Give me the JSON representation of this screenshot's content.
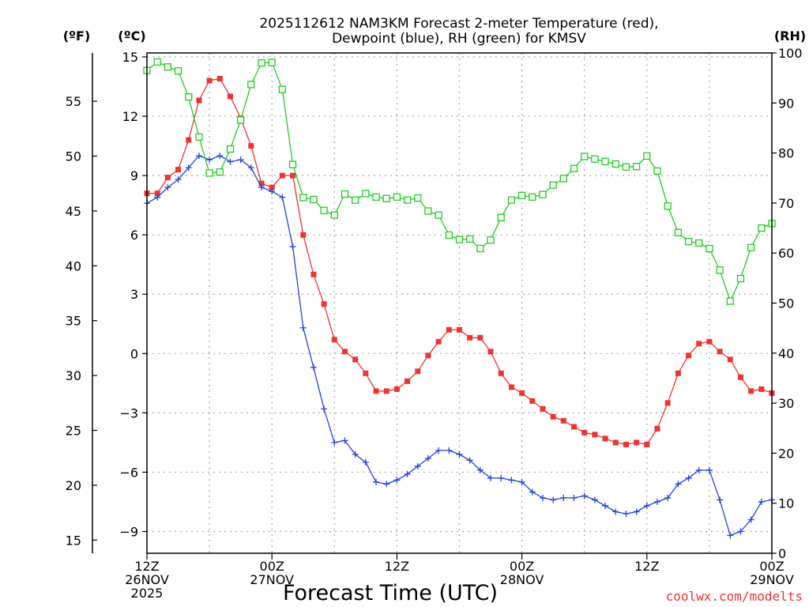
{
  "chart_data": {
    "type": "line",
    "title_line1": "2025112612 NAM3KM Forecast 2-meter Temperature (red),",
    "title_line2": "Dewpoint (blue), RH (green) for KMSV",
    "unit_f": "(ºF)",
    "unit_c": "(ºC)",
    "unit_rh": "(RH)",
    "xlabel": "Forecast Time (UTC)",
    "credit": "coolwx.com/modelts",
    "x_range_hours": [
      0,
      60
    ],
    "ylim_c": [
      -10.1,
      15.2
    ],
    "ylim_rh": [
      0,
      100
    ],
    "ylim_f": [
      13.8,
      59.4
    ],
    "c_ticks": [
      "15",
      "12",
      "9",
      "6",
      "3",
      "0",
      "−3",
      "−6",
      "−9"
    ],
    "c_tick_values": [
      15,
      12,
      9,
      6,
      3,
      0,
      -3,
      -6,
      -9
    ],
    "f_ticks": [
      "55",
      "50",
      "45",
      "40",
      "35",
      "30",
      "25",
      "20",
      "15"
    ],
    "f_tick_values": [
      55,
      50,
      45,
      40,
      35,
      30,
      25,
      20,
      15
    ],
    "rh_ticks": [
      "100",
      "90",
      "80",
      "70",
      "60",
      "50",
      "40",
      "30",
      "20",
      "10",
      "0"
    ],
    "rh_tick_values": [
      100,
      90,
      80,
      70,
      60,
      50,
      40,
      30,
      20,
      10,
      0
    ],
    "x_ticks": [
      {
        "hour": 0,
        "lines": [
          "12Z",
          "26NOV",
          "2025"
        ]
      },
      {
        "hour": 12,
        "lines": [
          "00Z",
          "27NOV"
        ]
      },
      {
        "hour": 24,
        "lines": [
          "12Z"
        ]
      },
      {
        "hour": 36,
        "lines": [
          "00Z",
          "28NOV"
        ]
      },
      {
        "hour": 48,
        "lines": [
          "12Z"
        ]
      },
      {
        "hour": 60,
        "lines": [
          "00Z",
          "29NOV"
        ]
      }
    ],
    "series": [
      {
        "name": "2-meter Temperature",
        "color": "#ee3333",
        "marker": "filled-square",
        "axis": "celsius",
        "values": [
          8.1,
          8.1,
          8.9,
          9.3,
          10.8,
          12.8,
          13.8,
          13.9,
          13.0,
          11.9,
          10.5,
          8.6,
          8.4,
          9.0,
          9.0,
          6.0,
          4.0,
          2.5,
          0.7,
          0.1,
          -0.3,
          -1.0,
          -1.9,
          -1.9,
          -1.8,
          -1.4,
          -0.9,
          -0.1,
          0.6,
          1.2,
          1.2,
          0.8,
          0.8,
          0.1,
          -1.0,
          -1.7,
          -2.0,
          -2.4,
          -2.8,
          -3.2,
          -3.4,
          -3.7,
          -4.0,
          -4.1,
          -4.3,
          -4.5,
          -4.6,
          -4.5,
          -4.6,
          -3.8,
          -2.5,
          -1.0,
          -0.1,
          0.5,
          0.6,
          0.1,
          -0.3,
          -1.2,
          -1.9,
          -1.8,
          -2.0
        ]
      },
      {
        "name": "Dewpoint",
        "color": "#2244dd",
        "marker": "plus",
        "axis": "celsius",
        "values": [
          7.6,
          7.9,
          8.4,
          8.8,
          9.4,
          10.0,
          9.8,
          10.0,
          9.7,
          9.8,
          9.4,
          8.4,
          8.2,
          7.9,
          5.4,
          1.3,
          -0.7,
          -2.8,
          -4.5,
          -4.4,
          -5.1,
          -5.5,
          -6.5,
          -6.6,
          -6.4,
          -6.1,
          -5.7,
          -5.3,
          -4.9,
          -4.9,
          -5.1,
          -5.4,
          -5.9,
          -6.3,
          -6.3,
          -6.4,
          -6.5,
          -7.0,
          -7.3,
          -7.4,
          -7.3,
          -7.3,
          -7.2,
          -7.4,
          -7.7,
          -8.0,
          -8.1,
          -8.0,
          -7.7,
          -7.5,
          -7.3,
          -6.6,
          -6.3,
          -5.9,
          -5.9,
          -7.4,
          -9.2,
          -9.0,
          -8.4,
          -7.5,
          -7.4
        ]
      },
      {
        "name": "RH",
        "color": "#22cc22",
        "marker": "open-square",
        "axis": "rh",
        "values": [
          96.5,
          98.2,
          97.2,
          96.4,
          91.2,
          83.2,
          76.0,
          76.2,
          80.8,
          86.6,
          93.7,
          98.0,
          98.1,
          92.7,
          77.7,
          71.1,
          70.7,
          68.5,
          67.6,
          71.8,
          70.6,
          71.9,
          71.2,
          70.9,
          71.2,
          70.6,
          71.0,
          68.4,
          67.6,
          63.6,
          62.7,
          62.8,
          60.9,
          62.6,
          67.1,
          70.6,
          71.5,
          71.2,
          71.7,
          73.6,
          74.9,
          76.9,
          79.3,
          78.8,
          78.3,
          77.8,
          77.2,
          77.3,
          79.4,
          76.4,
          69.4,
          64.1,
          62.3,
          62.0,
          60.9,
          56.6,
          50.4,
          54.9,
          61.1,
          65.0,
          65.9
        ]
      }
    ]
  }
}
